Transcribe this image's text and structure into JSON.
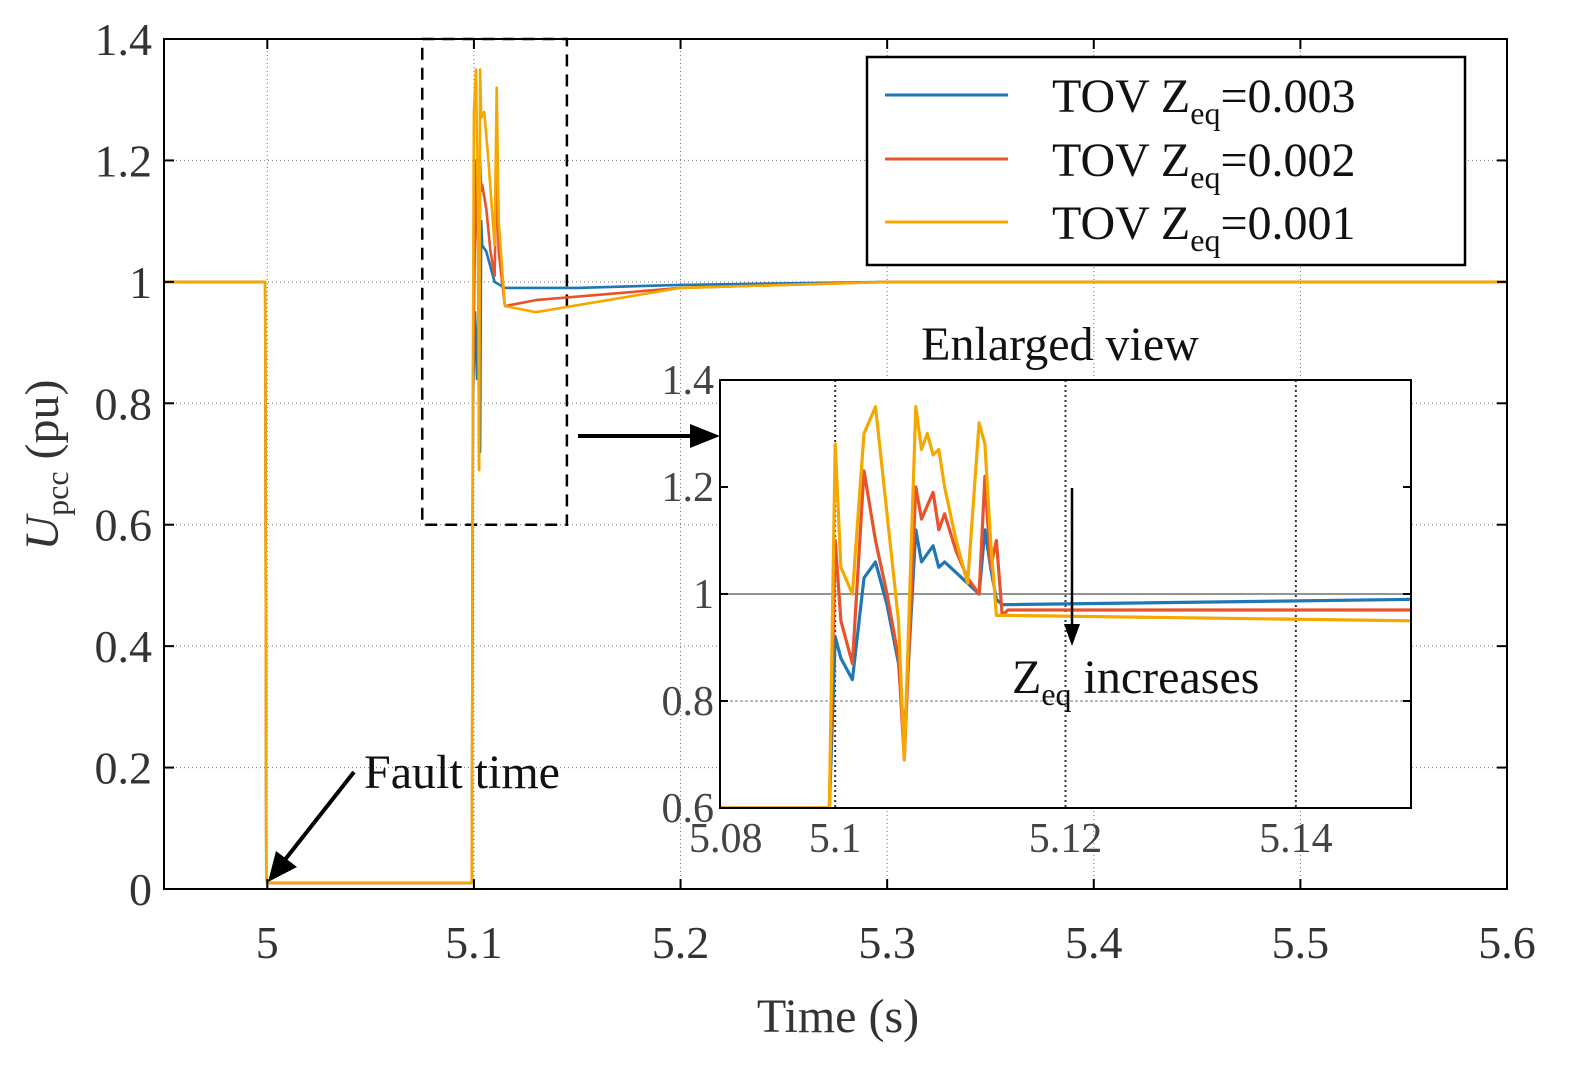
{
  "chart_data": [
    {
      "type": "line",
      "title": "",
      "xlabel": "Time (s)",
      "ylabel_main": "U",
      "ylabel_sub": "pcc",
      "ylabel_unit": " (pu)",
      "xlim": [
        4.95,
        5.6
      ],
      "ylim": [
        0,
        1.4
      ],
      "xticks": [
        "5",
        "5.1",
        "5.2",
        "5.3",
        "5.4",
        "5.5",
        "5.6"
      ],
      "yticks": [
        "0",
        "0.2",
        "0.4",
        "0.6",
        "0.8",
        "1",
        "1.2",
        "1.4"
      ],
      "grid": "dotted",
      "legend_position": "top-right",
      "series": [
        {
          "name": "TOV Z_eq=0.003",
          "legend_prefix": "TOV Z",
          "legend_sub": "eq",
          "legend_value": "=0.003",
          "color": "#1f77b4",
          "x": [
            4.95,
            4.999,
            4.9995,
            5.0,
            5.05,
            5.099,
            5.0995,
            5.1005,
            5.1015,
            5.1025,
            5.103,
            5.1035,
            5.104,
            5.106,
            5.11,
            5.115,
            5.12,
            5.125,
            5.15,
            5.2,
            5.3,
            5.4,
            5.6
          ],
          "y": [
            1.0,
            1.0,
            0.02,
            0.01,
            0.01,
            0.01,
            0.8,
            0.95,
            0.84,
            1.0,
            0.72,
            1.1,
            1.06,
            1.05,
            1.0,
            0.99,
            0.99,
            0.99,
            0.99,
            0.995,
            1.0,
            1.0,
            1.0
          ]
        },
        {
          "name": "TOV Z_eq=0.002",
          "legend_prefix": "TOV Z",
          "legend_sub": "eq",
          "legend_value": "=0.002",
          "color": "#e8532b",
          "x": [
            4.95,
            4.999,
            4.9995,
            5.0,
            5.05,
            5.099,
            5.0995,
            5.101,
            5.102,
            5.1025,
            5.103,
            5.1035,
            5.104,
            5.106,
            5.108,
            5.11,
            5.111,
            5.112,
            5.115,
            5.13,
            5.2,
            5.3,
            5.4,
            5.6
          ],
          "y": [
            1.0,
            1.0,
            0.02,
            0.01,
            0.01,
            0.01,
            0.82,
            1.2,
            1.05,
            0.69,
            1.2,
            1.15,
            1.16,
            1.12,
            1.05,
            1.01,
            1.2,
            1.05,
            0.96,
            0.97,
            0.99,
            1.0,
            1.0,
            1.0
          ]
        },
        {
          "name": "TOV Z_eq=0.001",
          "legend_prefix": "TOV Z",
          "legend_sub": "eq",
          "legend_value": "=0.001",
          "color": "#f5a800",
          "x": [
            4.95,
            4.999,
            4.9995,
            5.0,
            5.05,
            5.099,
            5.0995,
            5.1,
            5.101,
            5.102,
            5.1025,
            5.103,
            5.1035,
            5.105,
            5.107,
            5.11,
            5.111,
            5.112,
            5.115,
            5.13,
            5.2,
            5.3,
            5.4,
            5.6
          ],
          "y": [
            1.0,
            1.0,
            0.02,
            0.01,
            0.01,
            0.01,
            0.85,
            1.28,
            1.35,
            1.1,
            0.69,
            1.35,
            1.27,
            1.28,
            1.2,
            1.06,
            1.32,
            1.1,
            0.96,
            0.95,
            0.99,
            1.0,
            1.0,
            1.0
          ]
        }
      ],
      "annotations": {
        "fault_label": "Fault time",
        "fault_point": [
          5.0,
          0.0
        ],
        "zoom_box_x": [
          5.075,
          5.145
        ],
        "zoom_box_y": [
          0.6,
          1.4
        ]
      }
    },
    {
      "type": "line",
      "title": "Enlarged view",
      "xlim": [
        5.09,
        5.15
      ],
      "ylim": [
        0.6,
        1.4
      ],
      "xticks": [
        "5.08",
        "5.1",
        "5.12",
        "5.14"
      ],
      "yticks": [
        "0.6",
        "0.8",
        "1",
        "1.2",
        "1.4"
      ],
      "annotation": {
        "prefix": "Z",
        "sub": "eq",
        "suffix": " increases"
      },
      "series": [
        {
          "color": "#1f77b4",
          "x": [
            5.09,
            5.0995,
            5.1,
            5.1005,
            5.1015,
            5.1025,
            5.1035,
            5.1045,
            5.1055,
            5.106,
            5.107,
            5.1075,
            5.1085,
            5.109,
            5.1095,
            5.1105,
            5.1115,
            5.1125,
            5.113,
            5.1135,
            5.114,
            5.1145,
            5.15
          ],
          "y": [
            0.6,
            0.6,
            0.92,
            0.88,
            0.84,
            1.03,
            1.06,
            0.98,
            0.87,
            0.73,
            1.12,
            1.06,
            1.09,
            1.05,
            1.06,
            1.04,
            1.02,
            1.0,
            1.12,
            1.05,
            0.99,
            0.98,
            0.99
          ]
        },
        {
          "color": "#e8532b",
          "x": [
            5.09,
            5.0995,
            5.1,
            5.1005,
            5.1015,
            5.1025,
            5.1035,
            5.1045,
            5.1055,
            5.106,
            5.107,
            5.1075,
            5.1085,
            5.109,
            5.1095,
            5.1105,
            5.1115,
            5.1125,
            5.113,
            5.1135,
            5.114,
            5.1145,
            5.115,
            5.15
          ],
          "y": [
            0.6,
            0.6,
            1.1,
            0.95,
            0.87,
            1.23,
            1.1,
            1.0,
            0.88,
            0.69,
            1.2,
            1.14,
            1.19,
            1.12,
            1.15,
            1.08,
            1.03,
            1.0,
            1.22,
            1.05,
            1.1,
            0.96,
            0.97,
            0.97
          ]
        },
        {
          "color": "#f5a800",
          "x": [
            5.09,
            5.0995,
            5.1,
            5.1005,
            5.1015,
            5.1025,
            5.1035,
            5.1045,
            5.1055,
            5.106,
            5.107,
            5.1075,
            5.108,
            5.1085,
            5.109,
            5.1095,
            5.1105,
            5.1115,
            5.1125,
            5.113,
            5.1135,
            5.114,
            5.115,
            5.15
          ],
          "y": [
            0.6,
            0.6,
            1.28,
            1.05,
            1.0,
            1.3,
            1.35,
            1.15,
            0.95,
            0.69,
            1.35,
            1.27,
            1.3,
            1.26,
            1.27,
            1.2,
            1.1,
            1.02,
            1.32,
            1.28,
            1.1,
            0.96,
            0.96,
            0.95
          ]
        }
      ]
    }
  ]
}
